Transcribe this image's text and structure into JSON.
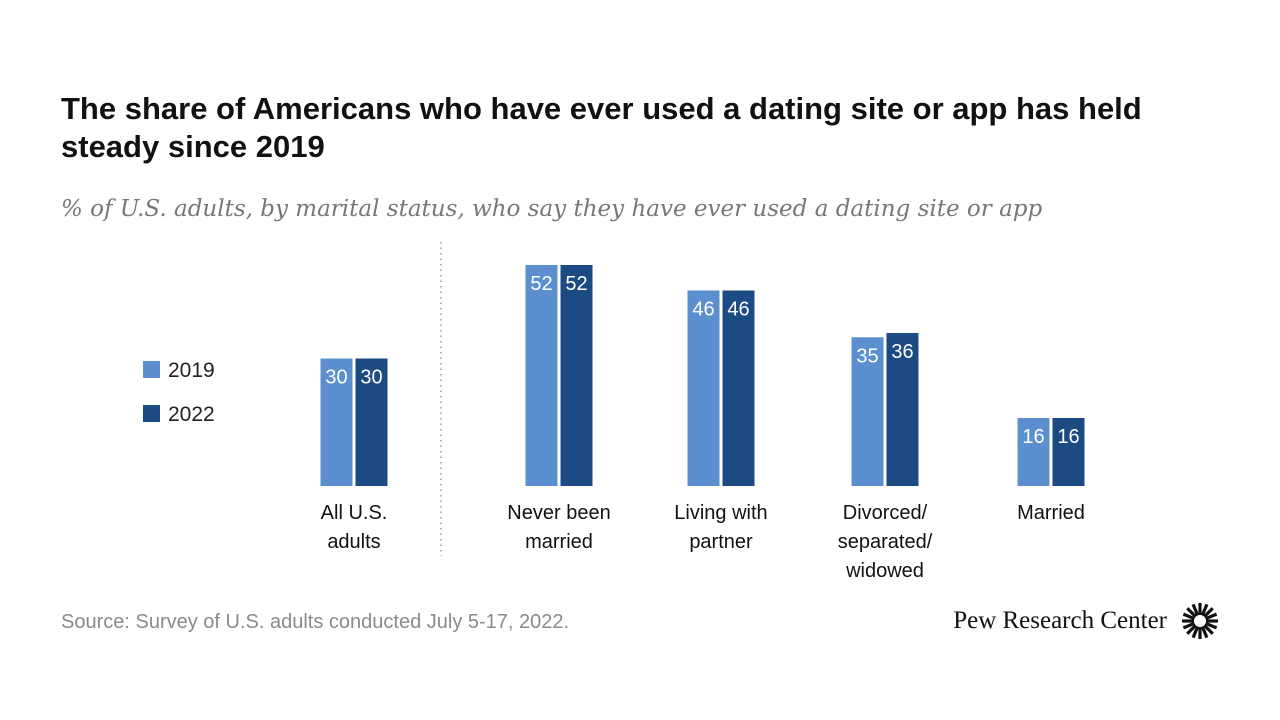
{
  "header": {
    "title": "The share of Americans who have ever used a dating site or app has held steady since 2019",
    "subtitle": "% of U.S. adults, by marital status, who say they have ever used a dating site or app"
  },
  "footer": {
    "source": "Source: Survey of U.S. adults conducted July 5-17, 2022.",
    "brand": "Pew Research Center",
    "logo_icon": "pew-sunburst-logo-icon"
  },
  "colors": {
    "s2019": "#5b8fcf",
    "s2022": "#1c4a82"
  },
  "chart_data": {
    "type": "bar",
    "title": "The share of Americans who have ever used a dating site or app has held steady since 2019",
    "subtitle": "% of U.S. adults, by marital status, who say they have ever used a dating site or app",
    "categories": [
      [
        "All U.S.",
        "adults"
      ],
      [
        "Never been",
        "married"
      ],
      [
        "Living with",
        "partner"
      ],
      [
        "Divorced/",
        "separated/",
        "widowed"
      ],
      [
        "Married"
      ]
    ],
    "series": [
      {
        "name": "2019",
        "values": [
          30,
          52,
          46,
          35,
          16
        ]
      },
      {
        "name": "2022",
        "values": [
          30,
          52,
          46,
          36,
          16
        ]
      }
    ],
    "ylim": [
      0,
      52
    ],
    "data_labels": true,
    "legend_placement": "left",
    "grid": false
  }
}
